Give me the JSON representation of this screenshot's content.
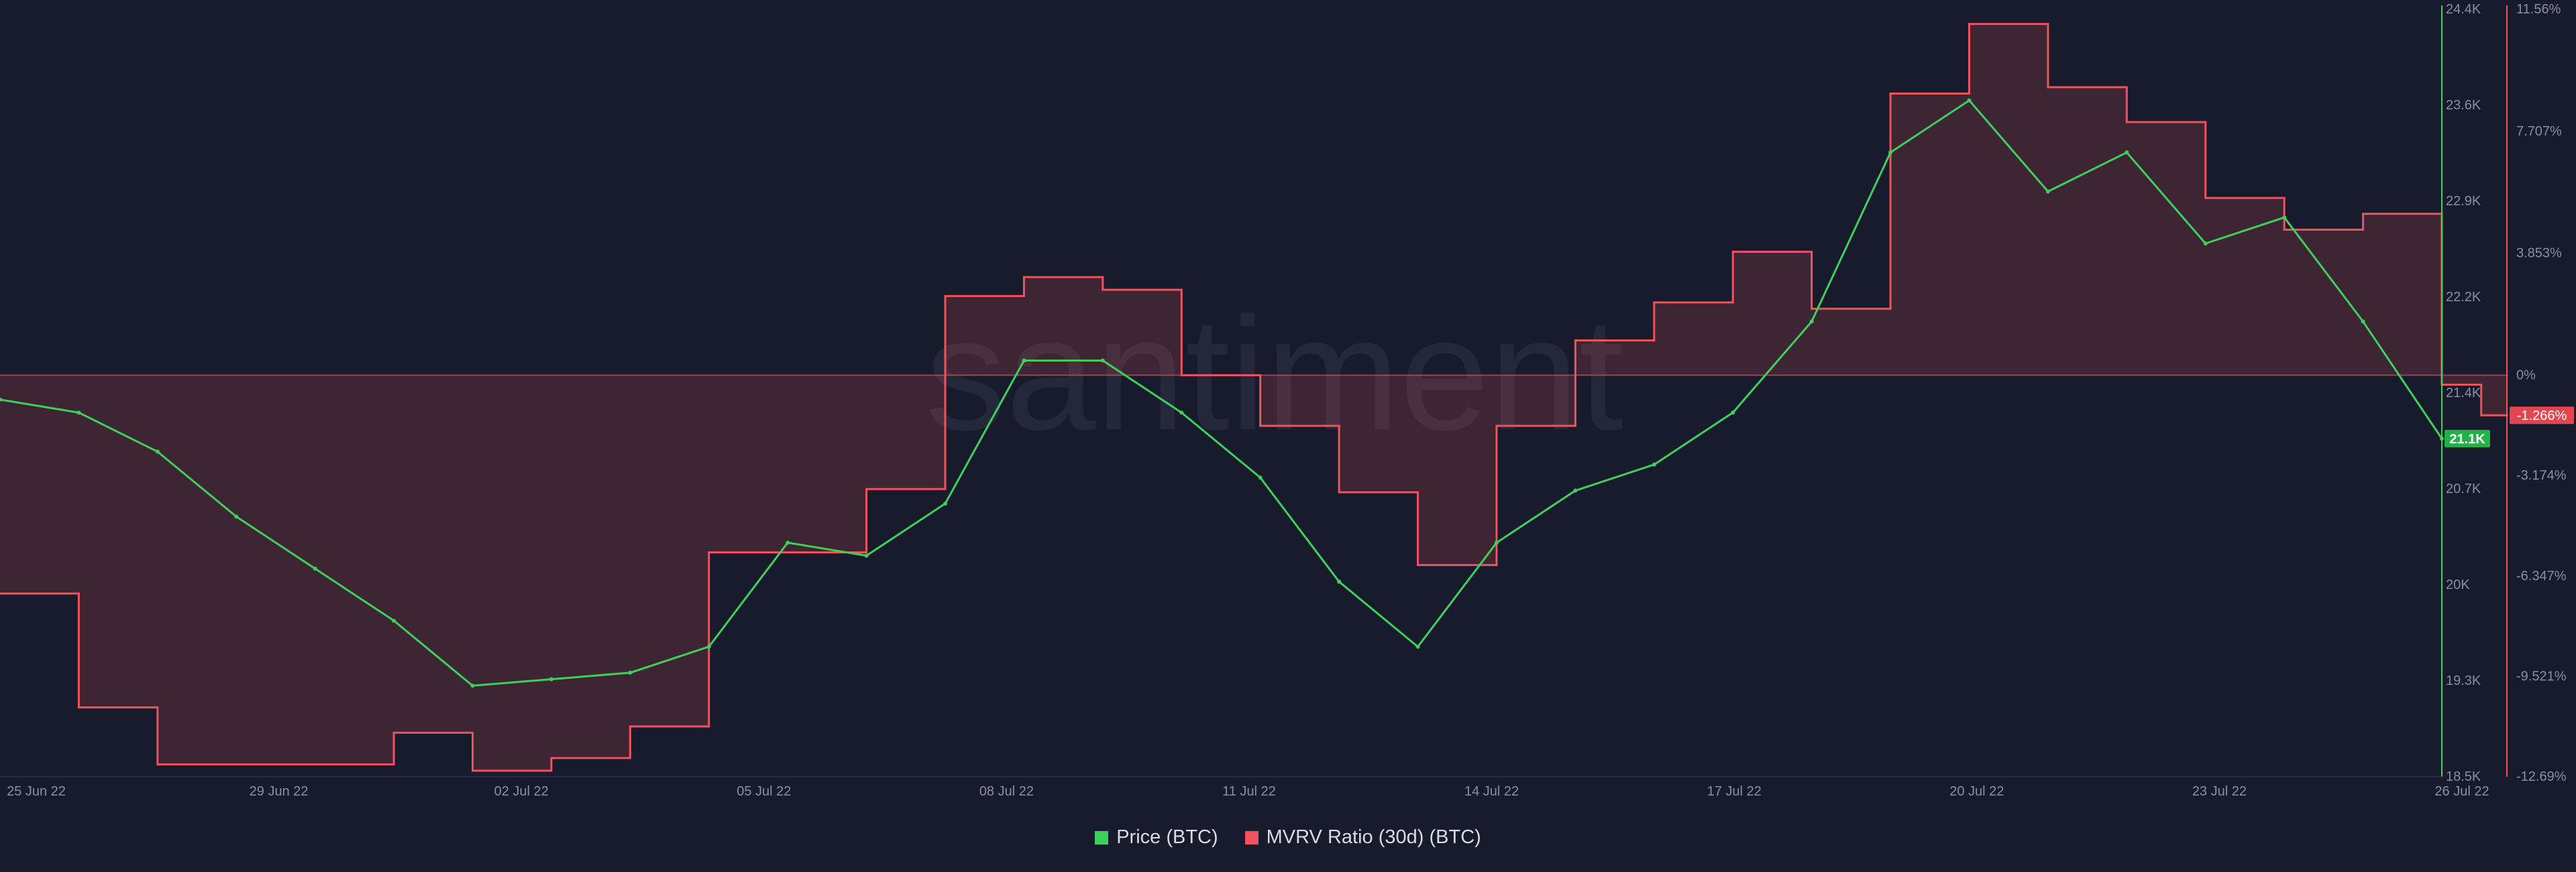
{
  "chart_data": {
    "type": "line",
    "watermark": "santiment",
    "x_ticks": [
      "25 Jun 22",
      "29 Jun 22",
      "02 Jul 22",
      "05 Jul 22",
      "08 Jul 22",
      "11 Jul 22",
      "14 Jul 22",
      "17 Jul 22",
      "20 Jul 22",
      "23 Jul 22",
      "26 Jul 22"
    ],
    "x_range": [
      "2022-06-25",
      "2022-07-26"
    ],
    "series": [
      {
        "name": "Price (BTC)",
        "color": "#3ecf5c",
        "axis": "left",
        "current_label": "21.1K",
        "points": [
          [
            "2022-06-25",
            21400
          ],
          [
            "2022-06-26",
            21300
          ],
          [
            "2022-06-27",
            21000
          ],
          [
            "2022-06-28",
            20500
          ],
          [
            "2022-06-29",
            20100
          ],
          [
            "2022-06-30",
            19700
          ],
          [
            "2022-07-01",
            19200
          ],
          [
            "2022-07-02",
            19250
          ],
          [
            "2022-07-03",
            19300
          ],
          [
            "2022-07-04",
            19500
          ],
          [
            "2022-07-05",
            20300
          ],
          [
            "2022-07-06",
            20200
          ],
          [
            "2022-07-07",
            20600
          ],
          [
            "2022-07-08",
            21700
          ],
          [
            "2022-07-09",
            21700
          ],
          [
            "2022-07-10",
            21300
          ],
          [
            "2022-07-11",
            20800
          ],
          [
            "2022-07-12",
            20000
          ],
          [
            "2022-07-13",
            19500
          ],
          [
            "2022-07-14",
            20300
          ],
          [
            "2022-07-15",
            20700
          ],
          [
            "2022-07-16",
            20900
          ],
          [
            "2022-07-17",
            21300
          ],
          [
            "2022-07-18",
            22000
          ],
          [
            "2022-07-19",
            23300
          ],
          [
            "2022-07-20",
            23700
          ],
          [
            "2022-07-21",
            23000
          ],
          [
            "2022-07-22",
            23300
          ],
          [
            "2022-07-23",
            22600
          ],
          [
            "2022-07-24",
            22800
          ],
          [
            "2022-07-25",
            22000
          ],
          [
            "2022-07-26",
            21100
          ]
        ]
      },
      {
        "name": "MVRV Ratio (30d) (BTC)",
        "color": "#f0535d",
        "axis": "right",
        "current_label": "-1.266%",
        "steps": [
          [
            "2022-06-25",
            -6.9
          ],
          [
            "2022-06-26",
            -10.5
          ],
          [
            "2022-06-27",
            -12.3
          ],
          [
            "2022-06-29",
            -12.3
          ],
          [
            "2022-06-30",
            -11.3
          ],
          [
            "2022-07-01",
            -12.5
          ],
          [
            "2022-07-02",
            -12.1
          ],
          [
            "2022-07-03",
            -11.1
          ],
          [
            "2022-07-04",
            -5.6
          ],
          [
            "2022-07-05",
            -5.6
          ],
          [
            "2022-07-06",
            -3.6
          ],
          [
            "2022-07-07",
            2.5
          ],
          [
            "2022-07-08",
            3.1
          ],
          [
            "2022-07-09",
            2.7
          ],
          [
            "2022-07-10",
            0.0
          ],
          [
            "2022-07-11",
            -1.6
          ],
          [
            "2022-07-12",
            -3.7
          ],
          [
            "2022-07-13",
            -6.0
          ],
          [
            "2022-07-14",
            -1.6
          ],
          [
            "2022-07-15",
            1.1
          ],
          [
            "2022-07-16",
            2.3
          ],
          [
            "2022-07-17",
            3.9
          ],
          [
            "2022-07-18",
            2.1
          ],
          [
            "2022-07-19",
            8.9
          ],
          [
            "2022-07-20",
            11.1
          ],
          [
            "2022-07-21",
            9.1
          ],
          [
            "2022-07-22",
            8.0
          ],
          [
            "2022-07-23",
            5.6
          ],
          [
            "2022-07-24",
            4.6
          ],
          [
            "2022-07-25",
            5.1
          ],
          [
            "2022-07-26",
            -0.3
          ],
          [
            "2022-07-26T12",
            -1.266
          ]
        ]
      }
    ],
    "left_axis": {
      "ticks": [
        "24.4K",
        "23.6K",
        "22.9K",
        "22.2K",
        "21.4K",
        "20.7K",
        "20K",
        "19.3K",
        "18.5K"
      ],
      "range": [
        18500,
        24400
      ]
    },
    "right_axis": {
      "ticks": [
        "11.56%",
        "7.707%",
        "3.853%",
        "0%",
        "-3.174%",
        "-6.347%",
        "-9.521%",
        "-12.69%"
      ],
      "range": [
        -12.69,
        11.56
      ]
    },
    "legend_placement": "bottom-center",
    "grid": false
  }
}
